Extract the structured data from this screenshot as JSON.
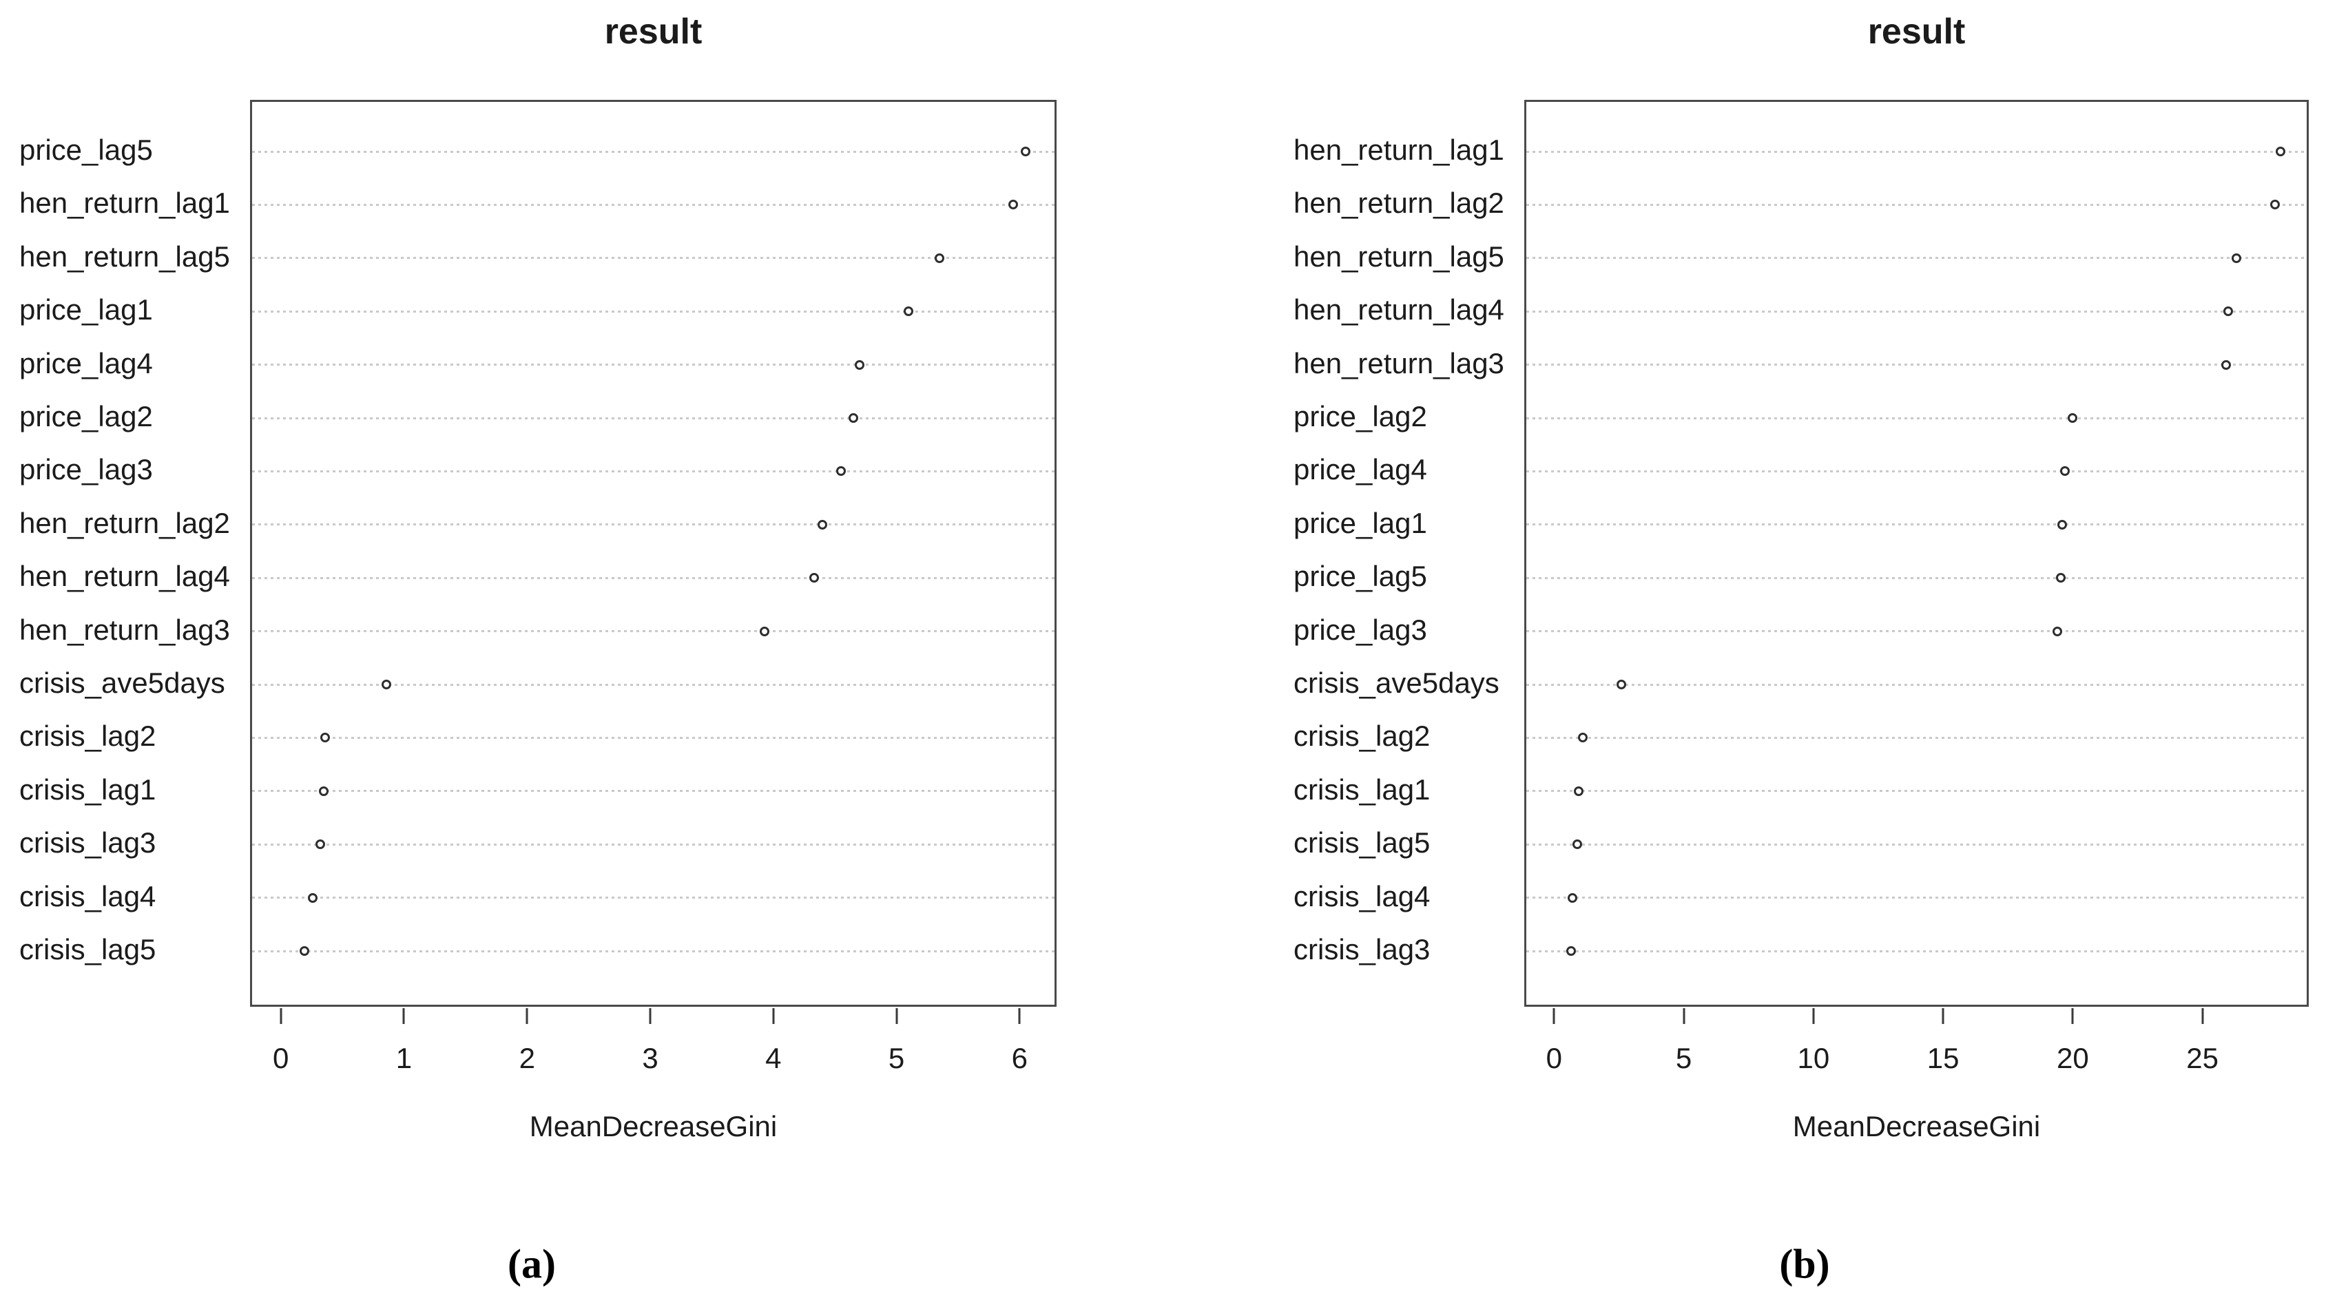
{
  "page": {
    "background": "#ffffff",
    "text_color": "#1b1b1b",
    "grid_color": "#c9c9c9",
    "box_color": "#4a4a4a",
    "point_color": "#2e2e2e"
  },
  "chart_data": [
    {
      "id": "a",
      "type": "scatter",
      "subtype": "dotchart",
      "title": "result",
      "xlabel": "MeanDecreaseGini",
      "caption": "(a)",
      "legend": "none",
      "grid": "dotted-horizontal",
      "point_style": "open-circle",
      "categories": [
        "price_lag5",
        "hen_return_lag1",
        "hen_return_lag5",
        "price_lag1",
        "price_lag4",
        "price_lag2",
        "price_lag3",
        "hen_return_lag2",
        "hen_return_lag4",
        "hen_return_lag3",
        "crisis_ave5days",
        "crisis_lag2",
        "crisis_lag1",
        "crisis_lag3",
        "crisis_lag4",
        "crisis_lag5"
      ],
      "values": [
        6.05,
        5.95,
        5.35,
        5.1,
        4.7,
        4.65,
        4.55,
        4.4,
        4.33,
        3.93,
        0.86,
        0.36,
        0.35,
        0.32,
        0.26,
        0.19
      ],
      "xticks": [
        0,
        1,
        2,
        3,
        4,
        5,
        6
      ],
      "xlim": [
        -0.25,
        6.3
      ]
    },
    {
      "id": "b",
      "type": "scatter",
      "subtype": "dotchart",
      "title": "result",
      "xlabel": "MeanDecreaseGini",
      "caption": "(b)",
      "legend": "none",
      "grid": "dotted-horizontal",
      "point_style": "open-circle",
      "categories": [
        "hen_return_lag1",
        "hen_return_lag2",
        "hen_return_lag5",
        "hen_return_lag4",
        "hen_return_lag3",
        "price_lag2",
        "price_lag4",
        "price_lag1",
        "price_lag5",
        "price_lag3",
        "crisis_ave5days",
        "crisis_lag2",
        "crisis_lag1",
        "crisis_lag5",
        "crisis_lag4",
        "crisis_lag3"
      ],
      "values": [
        28.0,
        27.8,
        26.3,
        26.0,
        25.9,
        20.0,
        19.7,
        19.6,
        19.55,
        19.4,
        2.6,
        1.1,
        0.95,
        0.9,
        0.7,
        0.65
      ],
      "xticks": [
        0,
        5,
        10,
        15,
        20,
        25
      ],
      "xlim": [
        -1.15,
        29.1
      ]
    }
  ]
}
